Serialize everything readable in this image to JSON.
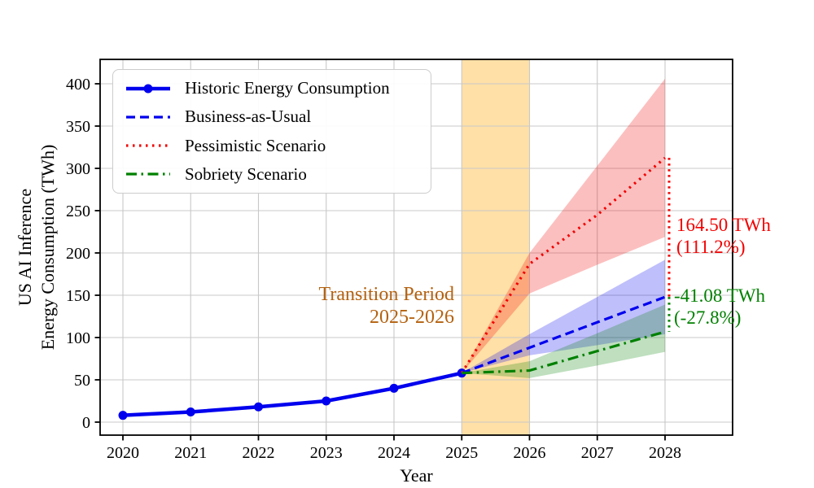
{
  "figure": {
    "background": "#ffffff",
    "grid_color": "#c8c8c8",
    "spine_color": "#000000"
  },
  "chart_data": {
    "type": "line",
    "title": "",
    "xlabel": "Year",
    "ylabel_lines": [
      "US AI Inference",
      "Energy Consumption (TWh)"
    ],
    "x_ticks": [
      "2020",
      "2021",
      "2022",
      "2023",
      "2024",
      "2025",
      "2026",
      "2027",
      "2028"
    ],
    "y_ticks": [
      "0",
      "50",
      "100",
      "150",
      "200",
      "250",
      "300",
      "350",
      "400"
    ],
    "xlim": [
      2019.66,
      2029.0
    ],
    "ylim": [
      -15,
      429
    ],
    "grid": true,
    "legend_position": "upper left",
    "series": [
      {
        "name": "Historic Energy Consumption",
        "color": "#0000ee",
        "style": "solid",
        "marker": "circle",
        "x": [
          2020,
          2021,
          2022,
          2023,
          2024,
          2025
        ],
        "y": [
          8,
          12,
          18,
          25,
          40,
          58
        ]
      },
      {
        "name": "Business-as-Usual",
        "color": "#0000ee",
        "style": "dashed",
        "x": [
          2025,
          2026,
          2027,
          2028
        ],
        "y": [
          58,
          88,
          118,
          147.93
        ],
        "band_lower": [
          58,
          79,
          91,
          104
        ],
        "band_upper": [
          58,
          104,
          148,
          192
        ]
      },
      {
        "name": "Pessimistic Scenario",
        "color": "#f20000",
        "style": "dotted",
        "x": [
          2025,
          2026,
          2027,
          2028
        ],
        "y": [
          58,
          187,
          245,
          312.43
        ],
        "band_lower": [
          58,
          152,
          186,
          219
        ],
        "band_upper": [
          58,
          200,
          303,
          406
        ]
      },
      {
        "name": "Sobriety Scenario",
        "color": "#008000",
        "style": "dashdot",
        "x": [
          2025,
          2026,
          2027,
          2028
        ],
        "y": [
          58,
          61,
          84,
          106.85
        ],
        "band_lower": [
          58,
          52,
          67,
          83
        ],
        "band_upper": [
          58,
          72,
          105,
          139
        ]
      }
    ],
    "highlight_span": {
      "x0": 2025,
      "x1": 2026,
      "color": "#ffa500",
      "opacity": 0.35,
      "label_lines": [
        "Transition Period",
        "2025-2026"
      ],
      "label_color": "#b4610f"
    },
    "annotations": [
      {
        "lines": [
          "164.50 TWh",
          "(111.2%)"
        ],
        "color": "#f20000",
        "connector": {
          "x": 2028.06,
          "from_value": 312.43,
          "to_value": 147.93
        }
      },
      {
        "lines": [
          "-41.08 TWh",
          "(-27.8%)"
        ],
        "color": "#008000",
        "connector": {
          "x": 2028.06,
          "from_value": 147.93,
          "to_value": 106.85
        }
      }
    ]
  }
}
